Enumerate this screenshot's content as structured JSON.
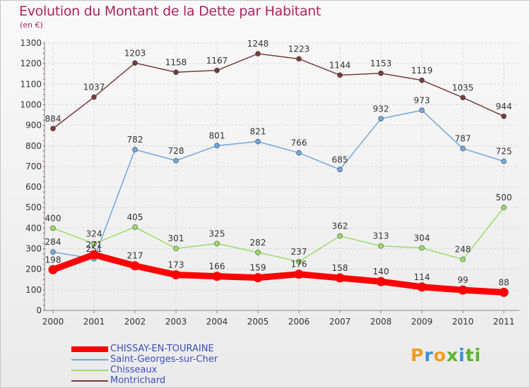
{
  "chart_data": {
    "type": "line",
    "title": "Evolution du Montant de la Dette par Habitant",
    "subtitle": "(en €)",
    "x": [
      "2000",
      "2001",
      "2002",
      "2003",
      "2004",
      "2005",
      "2006",
      "2007",
      "2008",
      "2009",
      "2010",
      "2011"
    ],
    "yticks": [
      "0",
      "100",
      "200",
      "300",
      "400",
      "500",
      "600",
      "700",
      "800",
      "900",
      "1000",
      "1100",
      "1200",
      "1300"
    ],
    "ylim": [
      0,
      1300
    ],
    "grid": true,
    "legend_position": "bottom-left",
    "series": [
      {
        "name": "CHISSAY-EN-TOURAINE",
        "color": "#ff0000",
        "values": [
          198,
          271,
          217,
          173,
          166,
          159,
          176,
          158,
          140,
          114,
          99,
          88
        ]
      },
      {
        "name": "Saint-Georges-sur-Cher",
        "color": "#6fa8dc",
        "values": [
          284,
          251,
          782,
          728,
          801,
          821,
          766,
          685,
          932,
          973,
          787,
          725
        ]
      },
      {
        "name": "Chisseaux",
        "color": "#99dd66",
        "values": [
          400,
          324,
          405,
          301,
          325,
          282,
          237,
          362,
          313,
          304,
          248,
          500
        ]
      },
      {
        "name": "Montrichard",
        "color": "#7a3b3b",
        "values": [
          884,
          1037,
          1203,
          1158,
          1167,
          1248,
          1223,
          1144,
          1153,
          1119,
          1035,
          944
        ]
      }
    ]
  },
  "logo": {
    "letters": [
      "P",
      "r",
      "o",
      "x",
      "i",
      "ti"
    ]
  }
}
